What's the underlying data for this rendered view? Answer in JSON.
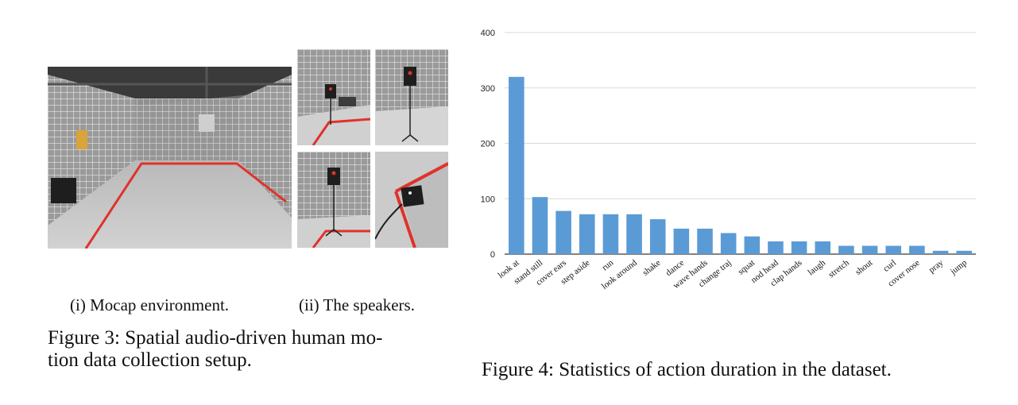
{
  "figure3": {
    "subcaption_1": "(i) Mocap environment.",
    "subcaption_2": "(ii) The speakers.",
    "caption_line1": "Figure 3: Spatial audio-driven human mo-",
    "caption_line2": "tion data collection setup."
  },
  "figure4": {
    "caption": "Figure 4: Statistics of action duration in the dataset."
  },
  "colors": {
    "bar": "#5b9bd5",
    "grid": "#d9d9d9",
    "floor": "#c9c9c9",
    "wall": "#8d8d8d",
    "red_tape": "#e0322b"
  },
  "chart_data": {
    "type": "bar",
    "title": "",
    "xlabel": "",
    "ylabel": "",
    "ylim": [
      0,
      400
    ],
    "yticks": [
      0,
      100,
      200,
      300,
      400
    ],
    "grid": true,
    "categories": [
      "look at",
      "stand still",
      "cover ears",
      "step aside",
      "run",
      "look around",
      "shake",
      "dance",
      "wave hands",
      "change traj",
      "squat",
      "nod head",
      "clap hands",
      "laugh",
      "stretch",
      "shout",
      "curl",
      "cover nose",
      "pray",
      "jump"
    ],
    "values": [
      320,
      103,
      78,
      72,
      72,
      72,
      63,
      46,
      46,
      38,
      32,
      23,
      23,
      23,
      15,
      15,
      15,
      15,
      6,
      6
    ]
  }
}
